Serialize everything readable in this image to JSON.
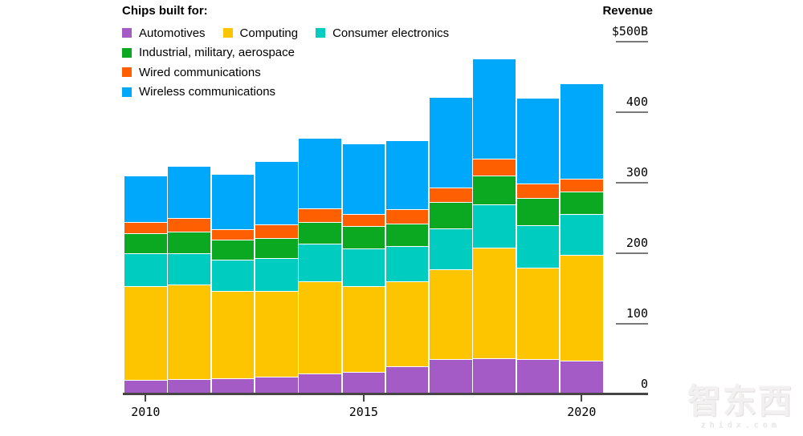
{
  "legend": {
    "title": "Chips built for:",
    "items": [
      {
        "label": "Automotives",
        "color": "#a55bc6"
      },
      {
        "label": "Computing",
        "color": "#fdc500"
      },
      {
        "label": "Consumer electronics",
        "color": "#00cdc0"
      },
      {
        "label": "Industrial, military, aerospace",
        "color": "#0ba821"
      },
      {
        "label": "Wired communications",
        "color": "#fe5f00"
      },
      {
        "label": "Wireless communications",
        "color": "#00a8fb"
      }
    ]
  },
  "y_axis": {
    "title": "Revenue",
    "ticks": [
      {
        "label": "$500B",
        "value": 500
      },
      {
        "label": "400",
        "value": 400
      },
      {
        "label": "300",
        "value": 300
      },
      {
        "label": "200",
        "value": 200
      },
      {
        "label": "100",
        "value": 100
      },
      {
        "label": "0",
        "value": 0
      }
    ]
  },
  "x_axis": {
    "ticks": [
      "2010",
      "2015",
      "2020"
    ]
  },
  "watermark": {
    "logo": "智东西",
    "domain": "zhidx.com"
  },
  "chart_data": {
    "type": "bar",
    "stacked": true,
    "title": "Chips built for:",
    "ylabel": "Revenue",
    "y_unit": "$B",
    "ylim": [
      0,
      500
    ],
    "y_ticks": [
      0,
      100,
      200,
      300,
      400,
      500
    ],
    "legend_position": "top-left",
    "grid": false,
    "categories": [
      "2010",
      "2011",
      "2012",
      "2013",
      "2014",
      "2015",
      "2016",
      "2017",
      "2018",
      "2019",
      "2020"
    ],
    "series": [
      {
        "name": "Automotives",
        "key": "automotives",
        "color": "#a55bc6",
        "values": [
          19,
          21,
          22,
          24,
          28,
          31,
          39,
          49,
          50,
          49,
          47
        ]
      },
      {
        "name": "Computing",
        "key": "computing",
        "color": "#fdc500",
        "values": [
          133,
          134,
          123,
          121,
          131,
          121,
          120,
          127,
          157,
          129,
          150
        ]
      },
      {
        "name": "Consumer electronics",
        "key": "consumer-electronics",
        "color": "#00cdc0",
        "values": [
          47,
          44,
          45,
          47,
          53,
          54,
          50,
          58,
          61,
          61,
          58
        ]
      },
      {
        "name": "Industrial, military, aerospace",
        "key": "industrial-military-aerospace",
        "color": "#0ba821",
        "values": [
          28,
          30,
          28,
          28,
          31,
          31,
          32,
          38,
          41,
          38,
          31
        ]
      },
      {
        "name": "Wired communications",
        "key": "wired-communications",
        "color": "#fe5f00",
        "values": [
          16,
          20,
          15,
          20,
          20,
          18,
          20,
          20,
          24,
          21,
          19
        ]
      },
      {
        "name": "Wireless communications",
        "key": "wireless-communications",
        "color": "#00a8fb",
        "values": [
          66,
          74,
          78,
          90,
          99,
          99,
          98,
          128,
          142,
          121,
          135
        ]
      }
    ],
    "totals": [
      309,
      323,
      311,
      330,
      362,
      354,
      359,
      420,
      475,
      419,
      440
    ]
  }
}
